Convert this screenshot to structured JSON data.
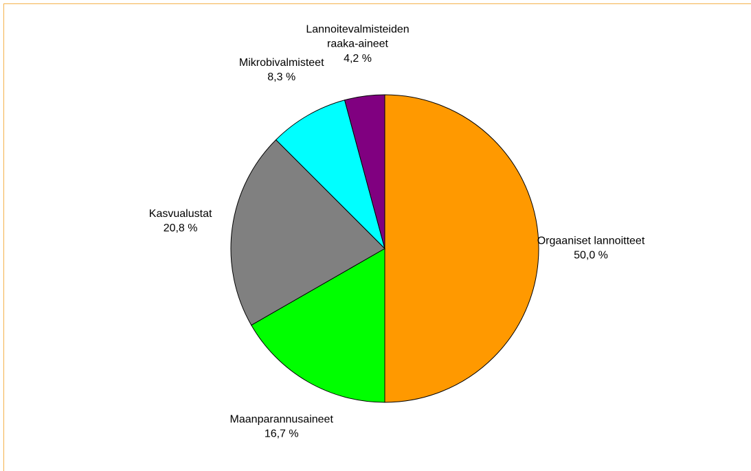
{
  "chart_data": {
    "type": "pie",
    "categories": [
      "Orgaaniset lannoitteet",
      "Maanparannusaineet",
      "Kasvualustat",
      "Mikrobivalmisteet",
      "Lannoitevalmisteiden raaka-aineet"
    ],
    "values": [
      50.0,
      16.7,
      20.8,
      8.3,
      4.2
    ],
    "value_labels": [
      "50,0 %",
      "16,7 %",
      "20,8 %",
      "8,3 %",
      "4,2 %"
    ],
    "colors": [
      "#ff9900",
      "#00ff00",
      "#808080",
      "#00ffff",
      "#800080"
    ]
  }
}
